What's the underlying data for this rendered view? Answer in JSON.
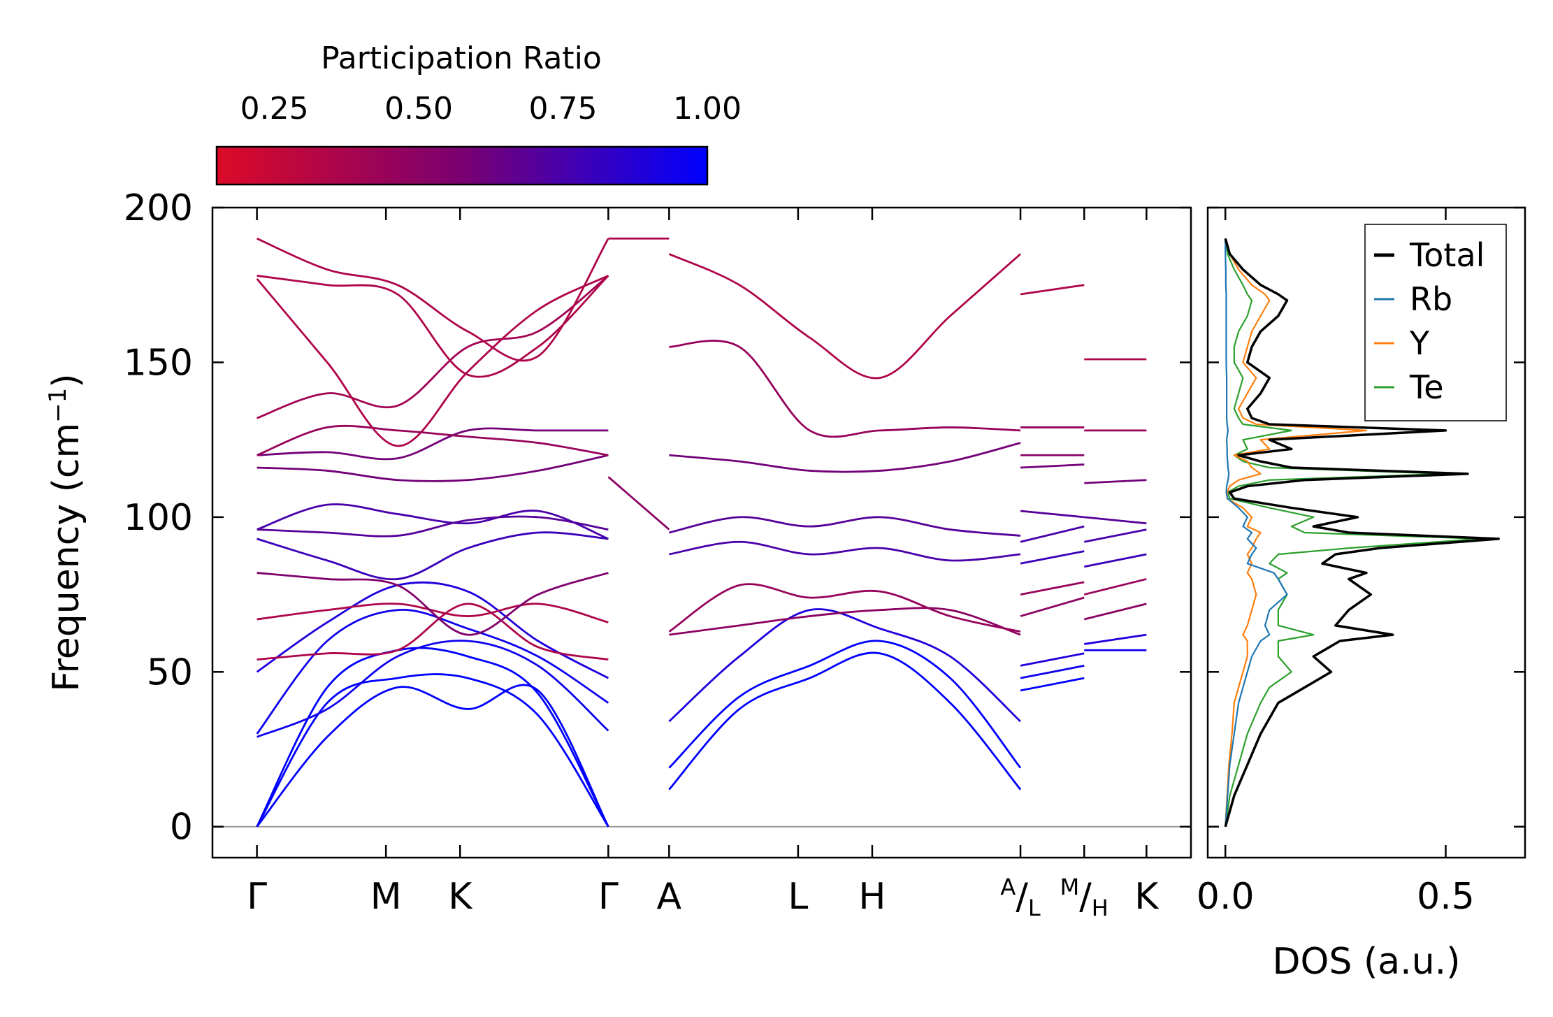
{
  "chart_data": [
    {
      "type": "line",
      "title": "",
      "ylabel": "Frequency (cm",
      "ylabel_sup": "−1",
      "ylabel_close": ")",
      "ylim": [
        -10,
        200
      ],
      "yticks": [
        0,
        50,
        100,
        150,
        200
      ],
      "ytick_labels": [
        "0",
        "50",
        "100",
        "150",
        "200"
      ],
      "xlim": [
        -0.3,
        6.3
      ],
      "kpoints": [
        {
          "x": 0.0,
          "label": "Γ"
        },
        {
          "x": 0.87,
          "label": "M"
        },
        {
          "x": 1.37,
          "label": "K"
        },
        {
          "x": 2.37,
          "label": "Γ"
        },
        {
          "x": 2.78,
          "label": "A"
        },
        {
          "x": 3.65,
          "label": "L"
        },
        {
          "x": 4.15,
          "label": "H"
        },
        {
          "x": 5.15,
          "label": "A/L"
        },
        {
          "x": 5.58,
          "label": "M/H"
        },
        {
          "x": 6.0,
          "label": "K"
        }
      ],
      "kpoint_sup": {
        "A/L": [
          "A",
          "L"
        ],
        "M/H": [
          "M",
          "H"
        ]
      },
      "colorbar": {
        "label": "Participation Ratio",
        "min": 0.15,
        "max": 1.0,
        "ticks": [
          0.25,
          0.5,
          0.75,
          1.0
        ],
        "tick_labels": [
          "0.25",
          "0.50",
          "0.75",
          "1.00"
        ],
        "color_low": "#dc0a28",
        "color_mid": "#7a0070",
        "color_high": "#0000ff"
      },
      "segments": [
        {
          "x": [
            0,
            2.37
          ],
          "branches": [
            {
              "y": [
                0,
                29,
                45,
                38,
                44,
                0
              ],
              "pr": 1.0
            },
            {
              "y": [
                0,
                40,
                48,
                48,
                36,
                0
              ],
              "pr": 1.0
            },
            {
              "y": [
                0,
                45,
                57,
                55,
                43,
                0
              ],
              "pr": 1.0
            },
            {
              "y": [
                29,
                38,
                55,
                60,
                52,
                31
              ],
              "pr": 0.95
            },
            {
              "y": [
                30,
                60,
                70,
                64,
                55,
                40
              ],
              "pr": 0.95
            },
            {
              "y": [
                50,
                66,
                78,
                76,
                60,
                48
              ],
              "pr": 0.9
            },
            {
              "y": [
                54,
                56,
                57,
                72,
                58,
                54
              ],
              "pr": 0.35
            },
            {
              "y": [
                67,
                70,
                72,
                68,
                72,
                66
              ],
              "pr": 0.35
            },
            {
              "y": [
                82,
                80,
                78,
                62,
                75,
                82
              ],
              "pr": 0.55
            },
            {
              "y": [
                93,
                86,
                80,
                90,
                95,
                93
              ],
              "pr": 0.8
            },
            {
              "y": [
                96,
                104,
                101,
                98,
                102,
                93
              ],
              "pr": 0.75
            },
            {
              "y": [
                96,
                95,
                94,
                99,
                100,
                96
              ],
              "pr": 0.7
            },
            {
              "y": [
                116,
                115,
                112,
                112,
                115,
                120
              ],
              "pr": 0.6
            },
            {
              "y": [
                120,
                121,
                119,
                128,
                128,
                128
              ],
              "pr": 0.6
            },
            {
              "y": [
                120,
                129,
                128,
                126,
                124,
                120
              ],
              "pr": 0.45
            },
            {
              "y": [
                132,
                140,
                136,
                155,
                160,
                178
              ],
              "pr": 0.4
            },
            {
              "y": [
                177,
                150,
                123,
                147,
                167,
                178
              ],
              "pr": 0.35
            },
            {
              "y": [
                178,
                175,
                172,
                146,
                155,
                178
              ],
              "pr": 0.35
            },
            {
              "y": [
                190,
                180,
                175,
                160,
                152,
                190
              ],
              "pr": 0.35
            }
          ]
        },
        {
          "x": [
            2.78,
            5.15
          ],
          "branches": [
            {
              "y": [
                12,
                38,
                48,
                56,
                40,
                12
              ],
              "pr": 1.0
            },
            {
              "y": [
                19,
                42,
                52,
                60,
                48,
                19
              ],
              "pr": 1.0
            },
            {
              "y": [
                34,
                55,
                70,
                64,
                55,
                34
              ],
              "pr": 0.9
            },
            {
              "y": [
                62,
                65,
                68,
                70,
                70,
                62
              ],
              "pr": 0.5
            },
            {
              "y": [
                63,
                78,
                74,
                76,
                68,
                63
              ],
              "pr": 0.45
            },
            {
              "y": [
                88,
                92,
                88,
                90,
                86,
                88
              ],
              "pr": 0.75
            },
            {
              "y": [
                95,
                100,
                97,
                100,
                96,
                94
              ],
              "pr": 0.7
            },
            {
              "y": [
                120,
                118,
                115,
                115,
                118,
                124
              ],
              "pr": 0.6
            },
            {
              "y": [
                155,
                155,
                128,
                128,
                129,
                128
              ],
              "pr": 0.45
            },
            {
              "y": [
                185,
                175,
                158,
                145,
                165,
                185
              ],
              "pr": 0.35
            }
          ]
        },
        {
          "x": [
            5.15,
            5.58
          ],
          "branches": [
            {
              "y": [
                44,
                48
              ],
              "pr": 1.0
            },
            {
              "y": [
                48,
                52
              ],
              "pr": 0.95
            },
            {
              "y": [
                52,
                56
              ],
              "pr": 0.9
            },
            {
              "y": [
                68,
                74
              ],
              "pr": 0.5
            },
            {
              "y": [
                75,
                79
              ],
              "pr": 0.45
            },
            {
              "y": [
                85,
                89
              ],
              "pr": 0.8
            },
            {
              "y": [
                92,
                97
              ],
              "pr": 0.75
            },
            {
              "y": [
                102,
                100
              ],
              "pr": 0.7
            },
            {
              "y": [
                116,
                117
              ],
              "pr": 0.6
            },
            {
              "y": [
                120,
                120
              ],
              "pr": 0.5
            },
            {
              "y": [
                129,
                129
              ],
              "pr": 0.45
            },
            {
              "y": [
                172,
                175
              ],
              "pr": 0.35
            }
          ]
        },
        {
          "x": [
            5.58,
            6.0
          ],
          "branches": [
            {
              "y": [
                57,
                57
              ],
              "pr": 0.95
            },
            {
              "y": [
                59,
                62
              ],
              "pr": 0.9
            },
            {
              "y": [
                67,
                72
              ],
              "pr": 0.5
            },
            {
              "y": [
                75,
                80
              ],
              "pr": 0.45
            },
            {
              "y": [
                84,
                88
              ],
              "pr": 0.8
            },
            {
              "y": [
                92,
                96
              ],
              "pr": 0.75
            },
            {
              "y": [
                100,
                98
              ],
              "pr": 0.7
            },
            {
              "y": [
                111,
                112
              ],
              "pr": 0.6
            },
            {
              "y": [
                128,
                128
              ],
              "pr": 0.45
            },
            {
              "y": [
                151,
                151
              ],
              "pr": 0.35
            }
          ]
        },
        {
          "x": [
            2.37,
            2.78
          ],
          "branches": [
            {
              "y": [
                190,
                190
              ],
              "pr": 0.35
            },
            {
              "y": [
                113,
                96
              ],
              "pr": 0.5
            }
          ]
        }
      ]
    },
    {
      "type": "line",
      "xlabel": "DOS (a.u.)",
      "xlim": [
        -0.04,
        0.68
      ],
      "xticks": [
        0.0,
        0.5
      ],
      "xtick_labels": [
        "0.0",
        "0.5"
      ],
      "ylim": [
        -10,
        200
      ],
      "legend_position": "top-right",
      "frequency": [
        0,
        10,
        20,
        30,
        40,
        45,
        50,
        55,
        60,
        62,
        65,
        70,
        75,
        80,
        82,
        85,
        88,
        90,
        93,
        95,
        97,
        100,
        103,
        106,
        108,
        110,
        112,
        114,
        116,
        118,
        120,
        122,
        125,
        128,
        130,
        132,
        135,
        140,
        145,
        150,
        155,
        160,
        165,
        170,
        172,
        175,
        180,
        185,
        190
      ],
      "series": [
        {
          "name": "Total",
          "color": "#000000",
          "values": [
            0,
            0.02,
            0.05,
            0.08,
            0.12,
            0.18,
            0.24,
            0.2,
            0.26,
            0.38,
            0.25,
            0.28,
            0.33,
            0.28,
            0.32,
            0.22,
            0.25,
            0.35,
            0.62,
            0.28,
            0.2,
            0.3,
            0.15,
            0.02,
            0.01,
            0.05,
            0.18,
            0.55,
            0.15,
            0.08,
            0.03,
            0.15,
            0.1,
            0.5,
            0.1,
            0.06,
            0.05,
            0.08,
            0.1,
            0.05,
            0.06,
            0.08,
            0.12,
            0.14,
            0.12,
            0.08,
            0.04,
            0.01,
            0.0
          ]
        },
        {
          "name": "Rb",
          "color": "#1f77b4",
          "values": [
            0,
            0.005,
            0.01,
            0.02,
            0.03,
            0.04,
            0.05,
            0.06,
            0.08,
            0.1,
            0.09,
            0.1,
            0.14,
            0.12,
            0.11,
            0.05,
            0.06,
            0.07,
            0.05,
            0.06,
            0.04,
            0.05,
            0.03,
            0.005,
            0.002,
            0.003,
            0.006,
            0.008,
            0.006,
            0.005,
            0.004,
            0.004,
            0.003,
            0.006,
            0.004,
            0.003,
            0.003,
            0.003,
            0.003,
            0.002,
            0.002,
            0.002,
            0.002,
            0.002,
            0.002,
            0.001,
            0.001,
            0.0,
            0.0
          ]
        },
        {
          "name": "Y",
          "color": "#ff7f0e",
          "values": [
            0,
            0.004,
            0.008,
            0.015,
            0.02,
            0.03,
            0.04,
            0.05,
            0.05,
            0.04,
            0.05,
            0.06,
            0.07,
            0.06,
            0.05,
            0.06,
            0.05,
            0.06,
            0.07,
            0.08,
            0.05,
            0.06,
            0.04,
            0.004,
            0.004,
            0.01,
            0.03,
            0.08,
            0.06,
            0.05,
            0.02,
            0.1,
            0.08,
            0.32,
            0.07,
            0.04,
            0.03,
            0.05,
            0.07,
            0.04,
            0.05,
            0.06,
            0.08,
            0.1,
            0.09,
            0.06,
            0.03,
            0.01,
            0.0
          ]
        },
        {
          "name": "Te",
          "color": "#2ca02c",
          "values": [
            0,
            0.01,
            0.03,
            0.05,
            0.08,
            0.1,
            0.15,
            0.12,
            0.12,
            0.2,
            0.12,
            0.12,
            0.14,
            0.12,
            0.14,
            0.1,
            0.12,
            0.28,
            0.58,
            0.18,
            0.15,
            0.2,
            0.1,
            0.01,
            0.005,
            0.03,
            0.1,
            0.5,
            0.1,
            0.04,
            0.02,
            0.05,
            0.04,
            0.15,
            0.04,
            0.03,
            0.02,
            0.03,
            0.04,
            0.02,
            0.02,
            0.03,
            0.05,
            0.06,
            0.05,
            0.04,
            0.02,
            0.005,
            0.0
          ]
        }
      ]
    }
  ]
}
